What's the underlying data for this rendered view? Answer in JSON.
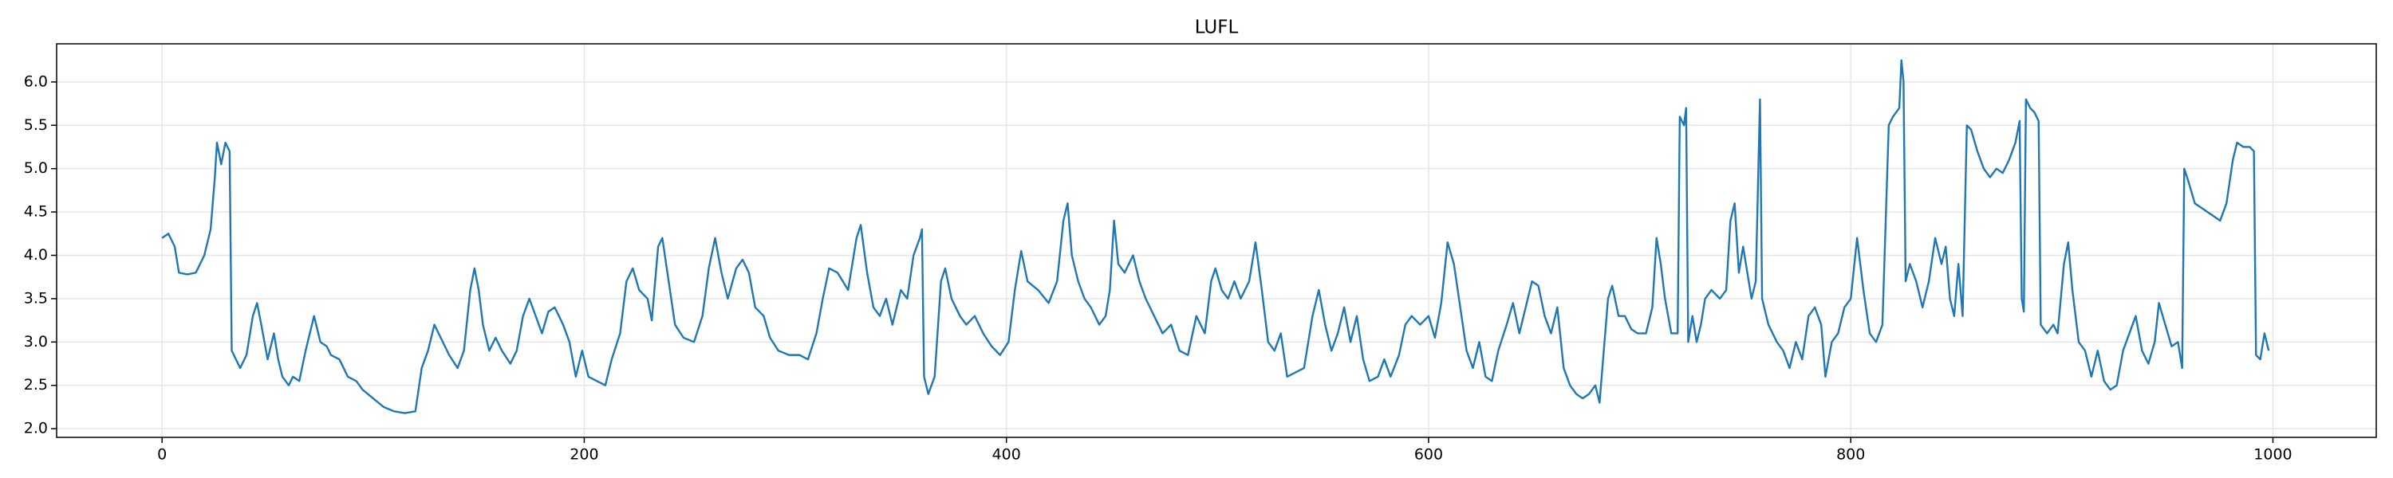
{
  "chart_data": {
    "type": "line",
    "title": "LUFL",
    "x": [
      0,
      3,
      6,
      8,
      12,
      16,
      20,
      23,
      25,
      26,
      28,
      30,
      32,
      33,
      35,
      37,
      40,
      43,
      45,
      47,
      50,
      53,
      55,
      57,
      60,
      62,
      65,
      68,
      72,
      75,
      78,
      80,
      84,
      88,
      92,
      95,
      100,
      105,
      110,
      115,
      120,
      123,
      126,
      129,
      132,
      136,
      140,
      143,
      146,
      148,
      150,
      152,
      155,
      158,
      161,
      165,
      168,
      171,
      174,
      177,
      180,
      183,
      186,
      190,
      193,
      196,
      199,
      202,
      206,
      210,
      213,
      217,
      220,
      223,
      226,
      230,
      232,
      235,
      237,
      240,
      243,
      247,
      252,
      256,
      259,
      262,
      265,
      268,
      272,
      275,
      278,
      281,
      285,
      288,
      292,
      297,
      302,
      306,
      310,
      313,
      316,
      320,
      325,
      329,
      331,
      334,
      337,
      340,
      343,
      346,
      350,
      353,
      356,
      359,
      360,
      361,
      363,
      366,
      369,
      371,
      374,
      378,
      381,
      385,
      389,
      393,
      397,
      401,
      404,
      407,
      410,
      415,
      420,
      424,
      427,
      429,
      431,
      434,
      437,
      440,
      444,
      447,
      449,
      451,
      453,
      456,
      460,
      463,
      466,
      470,
      474,
      478,
      482,
      486,
      490,
      494,
      497,
      499,
      502,
      505,
      508,
      511,
      515,
      518,
      521,
      524,
      527,
      530,
      533,
      537,
      541,
      545,
      548,
      551,
      554,
      557,
      560,
      563,
      566,
      569,
      572,
      576,
      579,
      582,
      586,
      589,
      592,
      596,
      600,
      603,
      606,
      609,
      612,
      615,
      618,
      621,
      624,
      627,
      630,
      633,
      637,
      640,
      643,
      646,
      649,
      652,
      655,
      658,
      661,
      664,
      667,
      670,
      673,
      676,
      679,
      681,
      683,
      685,
      687,
      690,
      693,
      696,
      699,
      703,
      706,
      708,
      710,
      712,
      715,
      718,
      719,
      721,
      722,
      723,
      725,
      727,
      729,
      731,
      734,
      738,
      741,
      743,
      745,
      747,
      749,
      751,
      753,
      755,
      757,
      758,
      761,
      765,
      768,
      771,
      774,
      777,
      780,
      783,
      786,
      788,
      791,
      794,
      797,
      800,
      803,
      806,
      809,
      812,
      815,
      818,
      820,
      823,
      824,
      825,
      826,
      828,
      831,
      834,
      837,
      840,
      843,
      845,
      847,
      849,
      851,
      853,
      855,
      857,
      860,
      863,
      866,
      869,
      872,
      875,
      878,
      880,
      881,
      882,
      883,
      885,
      887,
      889,
      890,
      893,
      896,
      898,
      901,
      903,
      905,
      908,
      911,
      914,
      917,
      920,
      923,
      926,
      929,
      932,
      935,
      938,
      941,
      944,
      946,
      949,
      952,
      955,
      957,
      958,
      960,
      963,
      966,
      969,
      972,
      975,
      978,
      981,
      983,
      986,
      989,
      991,
      992,
      994,
      996,
      998
    ],
    "series": [
      {
        "name": "LUFL",
        "color": "#1f77b4",
        "values": [
          4.2,
          4.25,
          4.1,
          3.8,
          3.78,
          3.8,
          4.0,
          4.3,
          4.9,
          5.3,
          5.05,
          5.3,
          5.2,
          2.9,
          2.8,
          2.7,
          2.85,
          3.3,
          3.45,
          3.2,
          2.8,
          3.1,
          2.8,
          2.6,
          2.5,
          2.6,
          2.55,
          2.9,
          3.3,
          3.0,
          2.95,
          2.85,
          2.8,
          2.6,
          2.55,
          2.45,
          2.35,
          2.25,
          2.2,
          2.18,
          2.2,
          2.7,
          2.9,
          3.2,
          3.05,
          2.85,
          2.7,
          2.9,
          3.6,
          3.85,
          3.6,
          3.2,
          2.9,
          3.05,
          2.9,
          2.75,
          2.9,
          3.3,
          3.5,
          3.3,
          3.1,
          3.35,
          3.4,
          3.2,
          3.0,
          2.6,
          2.9,
          2.6,
          2.55,
          2.5,
          2.8,
          3.1,
          3.7,
          3.85,
          3.6,
          3.5,
          3.25,
          4.1,
          4.2,
          3.7,
          3.2,
          3.05,
          3.0,
          3.3,
          3.85,
          4.2,
          3.8,
          3.5,
          3.85,
          3.95,
          3.8,
          3.4,
          3.3,
          3.05,
          2.9,
          2.85,
          2.85,
          2.8,
          3.1,
          3.5,
          3.85,
          3.8,
          3.6,
          4.2,
          4.35,
          3.8,
          3.4,
          3.3,
          3.5,
          3.2,
          3.6,
          3.5,
          4.0,
          4.2,
          4.3,
          2.6,
          2.4,
          2.6,
          3.7,
          3.85,
          3.5,
          3.3,
          3.2,
          3.3,
          3.1,
          2.95,
          2.85,
          3.0,
          3.6,
          4.05,
          3.7,
          3.6,
          3.45,
          3.7,
          4.4,
          4.6,
          4.0,
          3.7,
          3.5,
          3.4,
          3.2,
          3.3,
          3.6,
          4.4,
          3.9,
          3.8,
          4.0,
          3.7,
          3.5,
          3.3,
          3.1,
          3.2,
          2.9,
          2.85,
          3.3,
          3.1,
          3.7,
          3.85,
          3.6,
          3.5,
          3.7,
          3.5,
          3.7,
          4.15,
          3.6,
          3.0,
          2.9,
          3.1,
          2.6,
          2.65,
          2.7,
          3.3,
          3.6,
          3.2,
          2.9,
          3.1,
          3.4,
          3.0,
          3.3,
          2.8,
          2.55,
          2.6,
          2.8,
          2.6,
          2.85,
          3.2,
          3.3,
          3.2,
          3.3,
          3.05,
          3.45,
          4.15,
          3.9,
          3.4,
          2.9,
          2.7,
          3.0,
          2.6,
          2.55,
          2.9,
          3.2,
          3.45,
          3.1,
          3.4,
          3.7,
          3.65,
          3.3,
          3.1,
          3.4,
          2.7,
          2.5,
          2.4,
          2.35,
          2.4,
          2.5,
          2.3,
          2.9,
          3.5,
          3.65,
          3.3,
          3.3,
          3.15,
          3.1,
          3.1,
          3.4,
          4.2,
          3.9,
          3.5,
          3.1,
          3.1,
          5.6,
          5.5,
          5.7,
          3.0,
          3.3,
          3.0,
          3.2,
          3.5,
          3.6,
          3.5,
          3.6,
          4.4,
          4.6,
          3.8,
          4.1,
          3.8,
          3.5,
          3.7,
          5.8,
          3.5,
          3.2,
          3.0,
          2.9,
          2.7,
          3.0,
          2.8,
          3.3,
          3.4,
          3.2,
          2.6,
          3.0,
          3.1,
          3.4,
          3.5,
          4.2,
          3.6,
          3.1,
          3.0,
          3.2,
          5.5,
          5.6,
          5.7,
          6.25,
          6.0,
          3.7,
          3.9,
          3.7,
          3.4,
          3.7,
          4.2,
          3.9,
          4.1,
          3.5,
          3.3,
          3.9,
          3.3,
          5.5,
          5.45,
          5.2,
          5.0,
          4.9,
          5.0,
          4.95,
          5.1,
          5.3,
          5.55,
          3.5,
          3.35,
          5.8,
          5.7,
          5.65,
          5.55,
          3.2,
          3.1,
          3.2,
          3.1,
          3.9,
          4.15,
          3.6,
          3.0,
          2.9,
          2.6,
          2.9,
          2.55,
          2.45,
          2.5,
          2.9,
          3.1,
          3.3,
          2.9,
          2.75,
          3.0,
          3.45,
          3.2,
          2.95,
          3.0,
          2.7,
          5.0,
          4.85,
          4.6,
          4.55,
          4.5,
          4.45,
          4.4,
          4.6,
          5.1,
          5.3,
          5.25,
          5.25,
          5.2,
          2.85,
          2.8,
          3.1,
          2.9
        ]
      }
    ],
    "xlim": [
      -49.95,
      1048.95
    ],
    "ylim": [
      1.9,
      6.44
    ],
    "xticks": [
      0,
      200,
      400,
      600,
      800,
      1000
    ],
    "yticks": [
      {
        "value": 2,
        "label": "2.0"
      },
      {
        "value": 2.5,
        "label": "2.5"
      },
      {
        "value": 3,
        "label": "3.0"
      },
      {
        "value": 3.5,
        "label": "3.5"
      },
      {
        "value": 4,
        "label": "4.0"
      },
      {
        "value": 4.5,
        "label": "4.5"
      },
      {
        "value": 5,
        "label": "5.0"
      },
      {
        "value": 5.5,
        "label": "5.5"
      },
      {
        "value": 6,
        "label": "6.0"
      }
    ],
    "grid": true
  }
}
